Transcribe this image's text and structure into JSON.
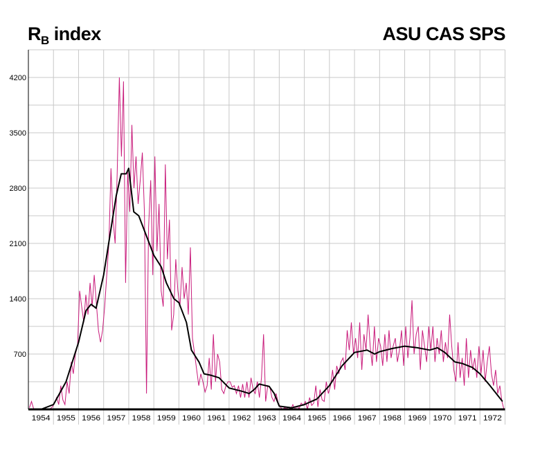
{
  "chart_data": {
    "type": "line",
    "title": {
      "main": "R",
      "subscript": "B",
      "suffix": " index"
    },
    "source_label": "ASU CAS   SPS",
    "xlabel": "",
    "ylabel": "",
    "ylim": [
      0,
      4550
    ],
    "xlim": [
      1954,
      1973
    ],
    "y_ticks": [
      700,
      1400,
      2100,
      2800,
      3500,
      4200
    ],
    "y_tick_labels": [
      "700",
      "1400",
      "2100",
      "2800",
      "3500",
      "4200"
    ],
    "y_grid_step": 350,
    "x_tick_labels": [
      "1954",
      "1955",
      "1956",
      "1957",
      "1958",
      "1959",
      "1960",
      "1961",
      "1962",
      "1963",
      "1964",
      "1965",
      "1966",
      "1967",
      "1968",
      "1969",
      "1970",
      "1971",
      "1972"
    ],
    "grid": true,
    "colors": {
      "monthly": "#c8197a",
      "smoothed": "#000000",
      "grid": "#c8c8c8"
    },
    "series": [
      {
        "name": "monthly",
        "start_year": 1954,
        "step": "month",
        "values": [
          20,
          100,
          10,
          0,
          0,
          0,
          0,
          0,
          5,
          0,
          10,
          30,
          80,
          150,
          60,
          300,
          120,
          60,
          350,
          200,
          600,
          450,
          700,
          800,
          1500,
          1300,
          1100,
          1450,
          1200,
          1600,
          1300,
          1700,
          1350,
          1000,
          850,
          1000,
          1300,
          1700,
          2100,
          3050,
          2400,
          2100,
          3000,
          4200,
          3200,
          4150,
          1600,
          3000,
          2500,
          3600,
          2800,
          3200,
          2600,
          2900,
          3250,
          2500,
          200,
          2300,
          2900,
          1700,
          3200,
          2000,
          2600,
          1500,
          1300,
          3100,
          1900,
          2400,
          1000,
          1200,
          1900,
          1500,
          1300,
          1800,
          1400,
          1600,
          1200,
          2050,
          900,
          700,
          500,
          300,
          450,
          350,
          220,
          300,
          650,
          250,
          950,
          350,
          700,
          600,
          250,
          200,
          300,
          350,
          350,
          280,
          300,
          200,
          300,
          150,
          320,
          150,
          350,
          150,
          400,
          250,
          200,
          350,
          150,
          400,
          950,
          100,
          300,
          280,
          150,
          100,
          200,
          80,
          30,
          0,
          20,
          10,
          30,
          0,
          60,
          0,
          40,
          10,
          80,
          50,
          100,
          0,
          150,
          50,
          80,
          300,
          30,
          250,
          120,
          100,
          350,
          200,
          300,
          500,
          250,
          550,
          450,
          600,
          650,
          500,
          1000,
          750,
          1100,
          700,
          900,
          650,
          1100,
          500,
          950,
          750,
          1200,
          800,
          550,
          1050,
          600,
          900,
          800,
          550,
          950,
          600,
          1000,
          650,
          800,
          900,
          600,
          750,
          1000,
          550,
          1050,
          650,
          900,
          1380,
          700,
          950,
          1050,
          500,
          1000,
          800,
          600,
          1050,
          750,
          1050,
          600,
          900,
          700,
          1000,
          600,
          850,
          650,
          1200,
          800,
          500,
          350,
          850,
          400,
          650,
          300,
          900,
          400,
          750,
          500,
          650,
          400,
          800,
          450,
          750,
          350,
          600,
          800,
          450,
          300,
          500,
          200,
          300,
          100,
          0
        ]
      },
      {
        "name": "smoothed",
        "x": [
          1954.0,
          1954.5,
          1955.0,
          1955.5,
          1956.0,
          1956.3,
          1956.5,
          1956.7,
          1957.0,
          1957.3,
          1957.5,
          1957.7,
          1957.9,
          1958.0,
          1958.2,
          1958.4,
          1958.7,
          1959.0,
          1959.3,
          1959.5,
          1959.8,
          1960.0,
          1960.3,
          1960.5,
          1960.8,
          1961.0,
          1961.3,
          1961.6,
          1962.0,
          1962.5,
          1962.8,
          1963.0,
          1963.2,
          1963.6,
          1963.8,
          1964.0,
          1964.5,
          1965.0,
          1965.5,
          1966.0,
          1966.5,
          1967.0,
          1967.5,
          1967.8,
          1968.0,
          1968.5,
          1969.0,
          1969.5,
          1970.0,
          1970.3,
          1970.6,
          1971.0,
          1971.3,
          1971.7,
          1972.0,
          1972.4,
          1972.9
        ],
        "values": [
          0,
          0,
          60,
          350,
          850,
          1250,
          1330,
          1280,
          1700,
          2300,
          2700,
          2980,
          2980,
          3050,
          2500,
          2450,
          2200,
          1950,
          1800,
          1600,
          1400,
          1350,
          1100,
          750,
          600,
          450,
          430,
          400,
          270,
          230,
          200,
          250,
          320,
          290,
          200,
          40,
          20,
          60,
          130,
          300,
          550,
          720,
          750,
          700,
          730,
          770,
          800,
          780,
          750,
          780,
          720,
          600,
          580,
          530,
          450,
          300,
          100
        ]
      }
    ]
  }
}
